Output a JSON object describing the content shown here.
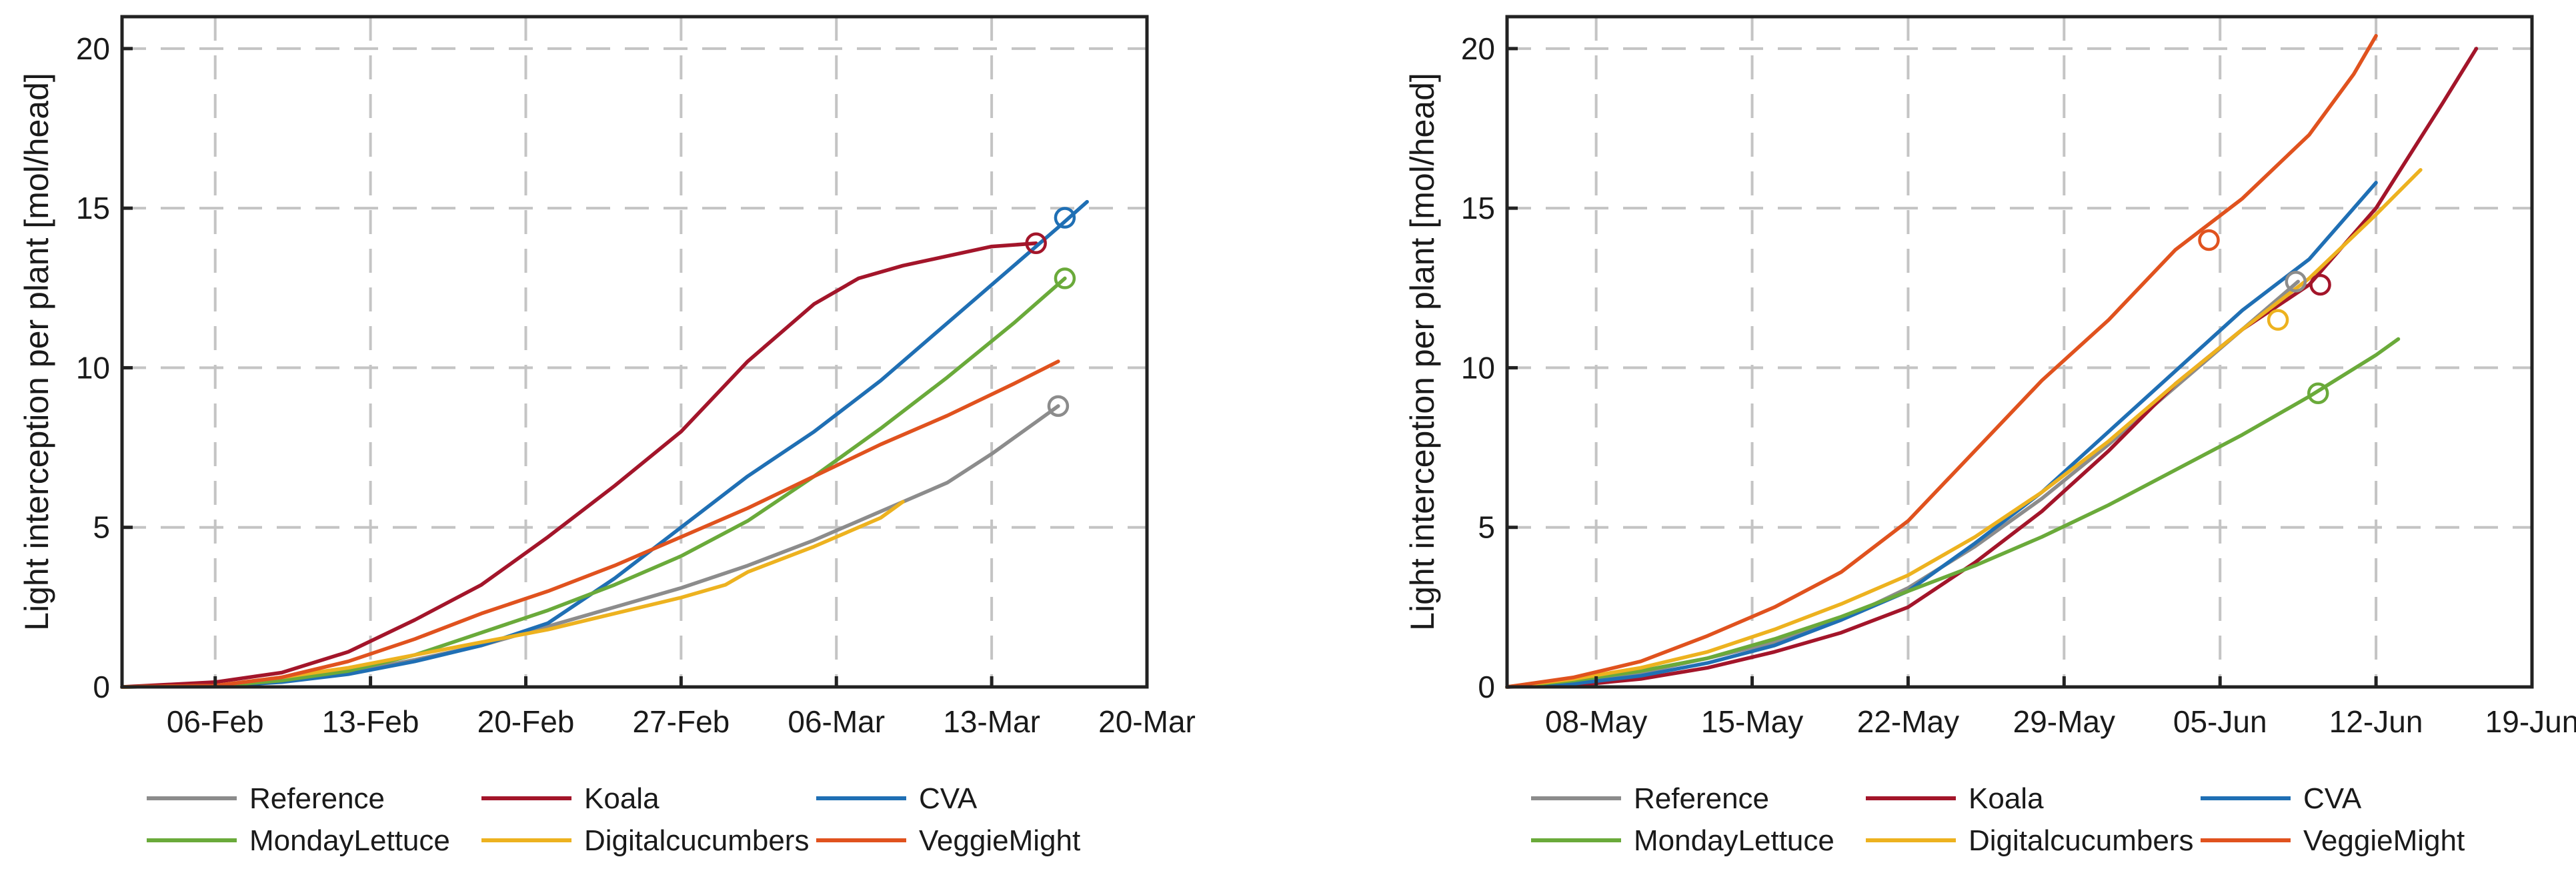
{
  "colors": {
    "Reference": "#8c8c8c",
    "Koala": "#a3152a",
    "CVA": "#1f6fb4",
    "MondayLettuce": "#6aaa3a",
    "Digitalcucumbers": "#edb21f",
    "VeggieMight": "#e0521e"
  },
  "chart_data": [
    {
      "type": "line",
      "title": "",
      "xlabel": "",
      "ylabel": "Light interception per plant [mol/head]",
      "xlim": [
        -1.2,
        45
      ],
      "ylim": [
        0,
        21
      ],
      "grid": true,
      "xticks": [
        {
          "v": 3,
          "label": "06-Feb"
        },
        {
          "v": 10,
          "label": "13-Feb"
        },
        {
          "v": 17,
          "label": "20-Feb"
        },
        {
          "v": 24,
          "label": "27-Feb"
        },
        {
          "v": 31,
          "label": "06-Mar"
        },
        {
          "v": 38,
          "label": "13-Mar"
        },
        {
          "v": 45,
          "label": "20-Mar"
        }
      ],
      "yticks": [
        {
          "v": 0,
          "label": "0"
        },
        {
          "v": 5,
          "label": "5"
        },
        {
          "v": 10,
          "label": "10"
        },
        {
          "v": 15,
          "label": "15"
        },
        {
          "v": 20,
          "label": "20"
        }
      ],
      "legend": [
        "Reference",
        "Koala",
        "CVA",
        "MondayLettuce",
        "Digitalcucumbers",
        "VeggieMight"
      ],
      "legend_position": "bottom",
      "series": [
        {
          "name": "Reference",
          "x": [
            -1.2,
            3,
            6,
            9,
            12,
            15,
            18,
            21,
            24,
            27,
            30,
            33,
            36,
            38,
            40,
            41
          ],
          "y": [
            0,
            0.03,
            0.2,
            0.45,
            0.85,
            1.3,
            1.9,
            2.5,
            3.1,
            3.8,
            4.6,
            5.5,
            6.4,
            7.3,
            8.3,
            8.8
          ],
          "marker_x": 41,
          "marker_y": 8.8
        },
        {
          "name": "Koala",
          "x": [
            -1.2,
            3,
            6,
            9,
            12,
            15,
            18,
            21,
            24,
            27,
            30,
            32,
            34,
            36,
            38,
            40
          ],
          "y": [
            0,
            0.15,
            0.45,
            1.1,
            2.1,
            3.2,
            4.7,
            6.3,
            8.0,
            10.2,
            12.0,
            12.8,
            13.2,
            13.5,
            13.8,
            13.9
          ],
          "marker_x": 40,
          "marker_y": 13.9
        },
        {
          "name": "CVA",
          "x": [
            -1.2,
            3,
            6,
            9,
            12,
            15,
            18,
            21,
            24,
            27,
            30,
            33,
            36,
            39,
            41,
            42.3
          ],
          "y": [
            0,
            0.03,
            0.15,
            0.4,
            0.8,
            1.3,
            2.0,
            3.4,
            5.0,
            6.6,
            8.0,
            9.6,
            11.4,
            13.2,
            14.4,
            15.2
          ],
          "marker_x": 41.3,
          "marker_y": 14.7
        },
        {
          "name": "MondayLettuce",
          "x": [
            -1.2,
            3,
            6,
            9,
            12,
            15,
            18,
            21,
            24,
            27,
            30,
            33,
            36,
            39,
            41.3
          ],
          "y": [
            0,
            0.03,
            0.2,
            0.5,
            1.0,
            1.7,
            2.4,
            3.2,
            4.1,
            5.2,
            6.6,
            8.1,
            9.7,
            11.4,
            12.8
          ],
          "marker_x": 41.3,
          "marker_y": 12.8
        },
        {
          "name": "Digitalcucumbers",
          "x": [
            -1.2,
            3,
            6,
            9,
            12,
            15,
            18,
            21,
            24,
            26,
            27,
            30,
            33,
            34
          ],
          "y": [
            0,
            0.04,
            0.3,
            0.6,
            1.0,
            1.4,
            1.8,
            2.3,
            2.8,
            3.2,
            3.6,
            4.4,
            5.3,
            5.8
          ]
        },
        {
          "name": "VeggieMight",
          "x": [
            -1.2,
            3,
            6,
            9,
            12,
            15,
            18,
            21,
            24,
            27,
            30,
            33,
            36,
            39,
            41
          ],
          "y": [
            0,
            0.04,
            0.3,
            0.8,
            1.5,
            2.3,
            3.0,
            3.8,
            4.7,
            5.6,
            6.6,
            7.6,
            8.5,
            9.5,
            10.2
          ]
        }
      ]
    },
    {
      "type": "line",
      "title": "",
      "xlabel": "",
      "ylabel": "Light interception per plant [mol/head]",
      "xlim": [
        1,
        47
      ],
      "ylim": [
        0,
        21
      ],
      "grid": true,
      "xticks": [
        {
          "v": 5,
          "label": "08-May"
        },
        {
          "v": 12,
          "label": "15-May"
        },
        {
          "v": 19,
          "label": "22-May"
        },
        {
          "v": 26,
          "label": "29-May"
        },
        {
          "v": 33,
          "label": "05-Jun"
        },
        {
          "v": 40,
          "label": "12-Jun"
        },
        {
          "v": 47,
          "label": "19-Jun"
        }
      ],
      "yticks": [
        {
          "v": 0,
          "label": "0"
        },
        {
          "v": 5,
          "label": "5"
        },
        {
          "v": 10,
          "label": "10"
        },
        {
          "v": 15,
          "label": "15"
        },
        {
          "v": 20,
          "label": "20"
        }
      ],
      "legend": [
        "Reference",
        "Koala",
        "CVA",
        "MondayLettuce",
        "Digitalcucumbers",
        "VeggieMight"
      ],
      "legend_position": "bottom",
      "series": [
        {
          "name": "Reference",
          "x": [
            1,
            4,
            7,
            10,
            13,
            16,
            19,
            22,
            25,
            28,
            31,
            34,
            36,
            36.5
          ],
          "y": [
            0,
            0.15,
            0.45,
            0.9,
            1.4,
            2.1,
            3.1,
            4.4,
            5.9,
            7.6,
            9.4,
            11.2,
            12.4,
            12.7
          ],
          "marker_x": 36.4,
          "marker_y": 12.7
        },
        {
          "name": "Koala",
          "x": [
            1,
            4,
            7,
            10,
            13,
            16,
            19,
            22,
            25,
            28,
            31,
            34,
            37,
            40,
            43,
            44.5
          ],
          "y": [
            0,
            0.05,
            0.25,
            0.6,
            1.1,
            1.7,
            2.5,
            3.9,
            5.5,
            7.4,
            9.5,
            11.2,
            12.6,
            15.0,
            18.3,
            20.0
          ],
          "marker_x": 37.5,
          "marker_y": 12.6
        },
        {
          "name": "CVA",
          "x": [
            1,
            4,
            7,
            10,
            13,
            16,
            19,
            22,
            25,
            28,
            31,
            34,
            37,
            40
          ],
          "y": [
            0,
            0.1,
            0.35,
            0.75,
            1.3,
            2.1,
            3.0,
            4.5,
            6.1,
            8.0,
            9.9,
            11.8,
            13.4,
            15.8
          ]
        },
        {
          "name": "MondayLettuce",
          "x": [
            1,
            4,
            7,
            10,
            13,
            16,
            19,
            22,
            25,
            28,
            31,
            34,
            37,
            40,
            41
          ],
          "y": [
            0,
            0.2,
            0.5,
            0.9,
            1.5,
            2.2,
            3.0,
            3.8,
            4.7,
            5.7,
            6.8,
            7.9,
            9.1,
            10.4,
            10.9
          ],
          "marker_x": 37.4,
          "marker_y": 9.2
        },
        {
          "name": "Digitalcucumbers",
          "x": [
            1,
            4,
            7,
            10,
            13,
            16,
            19,
            22,
            25,
            28,
            31,
            34,
            37,
            40,
            42
          ],
          "y": [
            0,
            0.25,
            0.6,
            1.1,
            1.8,
            2.6,
            3.5,
            4.7,
            6.1,
            7.7,
            9.5,
            11.2,
            12.8,
            14.8,
            16.2
          ],
          "marker_x": 35.6,
          "marker_y": 11.5
        },
        {
          "name": "VeggieMight",
          "x": [
            1,
            4,
            7,
            10,
            13,
            16,
            19,
            22,
            25,
            28,
            31,
            34,
            37,
            39,
            40
          ],
          "y": [
            0,
            0.3,
            0.8,
            1.6,
            2.5,
            3.6,
            5.2,
            7.4,
            9.6,
            11.5,
            13.7,
            15.3,
            17.3,
            19.2,
            20.4
          ],
          "marker_x": 32.5,
          "marker_y": 14.0
        }
      ]
    }
  ]
}
